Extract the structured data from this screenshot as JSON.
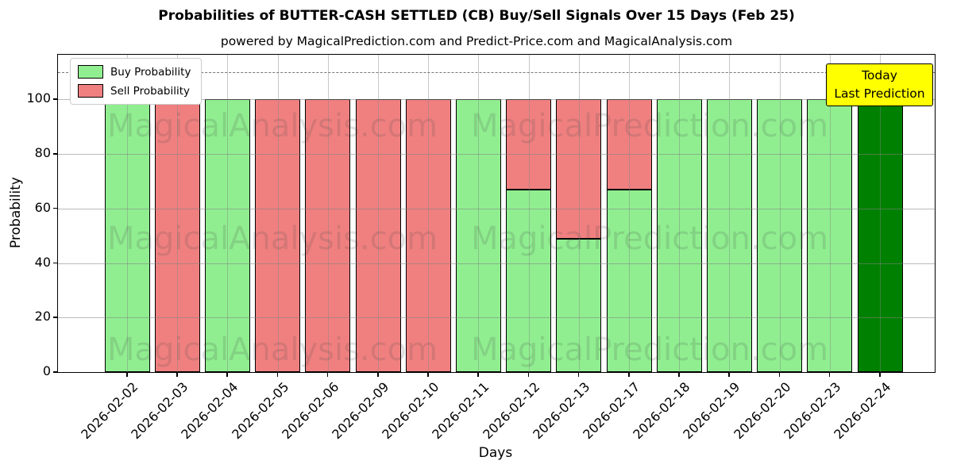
{
  "title": "Probabilities of BUTTER-CASH SETTLED (CB) Buy/Sell Signals Over 15 Days (Feb 25)",
  "subtitle": "powered by MagicalPrediction.com and Predict-Price.com and MagicalAnalysis.com",
  "legend": {
    "items": [
      {
        "label": "Buy Probability",
        "color": "#90ee90"
      },
      {
        "label": "Sell Probability",
        "color": "#f08080"
      }
    ]
  },
  "annotation": {
    "lines": [
      "Today",
      "Last Prediction"
    ],
    "bg": "#ffff00",
    "border": "#000000"
  },
  "watermarks": {
    "left": "MagicalAnalysis.com",
    "right": "MagicalPrediction.com"
  },
  "chart_data": {
    "type": "bar",
    "stacked": true,
    "title": "Probabilities of BUTTER-CASH SETTLED (CB) Buy/Sell Signals Over 15 Days (Feb 25)",
    "xlabel": "Days",
    "ylabel": "Probability",
    "categories": [
      "2026-02-02",
      "2026-02-03",
      "2026-02-04",
      "2026-02-05",
      "2026-02-06",
      "2026-02-09",
      "2026-02-10",
      "2026-02-11",
      "2026-02-12",
      "2026-02-13",
      "2026-02-17",
      "2026-02-18",
      "2026-02-19",
      "2026-02-20",
      "2026-02-23",
      "2026-02-24"
    ],
    "series": [
      {
        "name": "Buy Probability",
        "color": "#90ee90",
        "values": [
          100,
          0,
          100,
          0,
          0,
          0,
          0,
          100,
          67,
          49,
          67,
          100,
          100,
          100,
          100,
          100
        ]
      },
      {
        "name": "Sell Probability",
        "color": "#f08080",
        "values": [
          0,
          100,
          0,
          100,
          100,
          100,
          100,
          0,
          33,
          51,
          33,
          0,
          0,
          0,
          0,
          0
        ]
      }
    ],
    "highlight_last_bar_color": "#008000",
    "yticks": [
      0,
      20,
      40,
      60,
      80,
      100
    ],
    "ylim": [
      0,
      116.4
    ],
    "dashed_line_y": 110,
    "grid": true,
    "legend_position": "upper left",
    "bar_edge_color": "#000000"
  }
}
